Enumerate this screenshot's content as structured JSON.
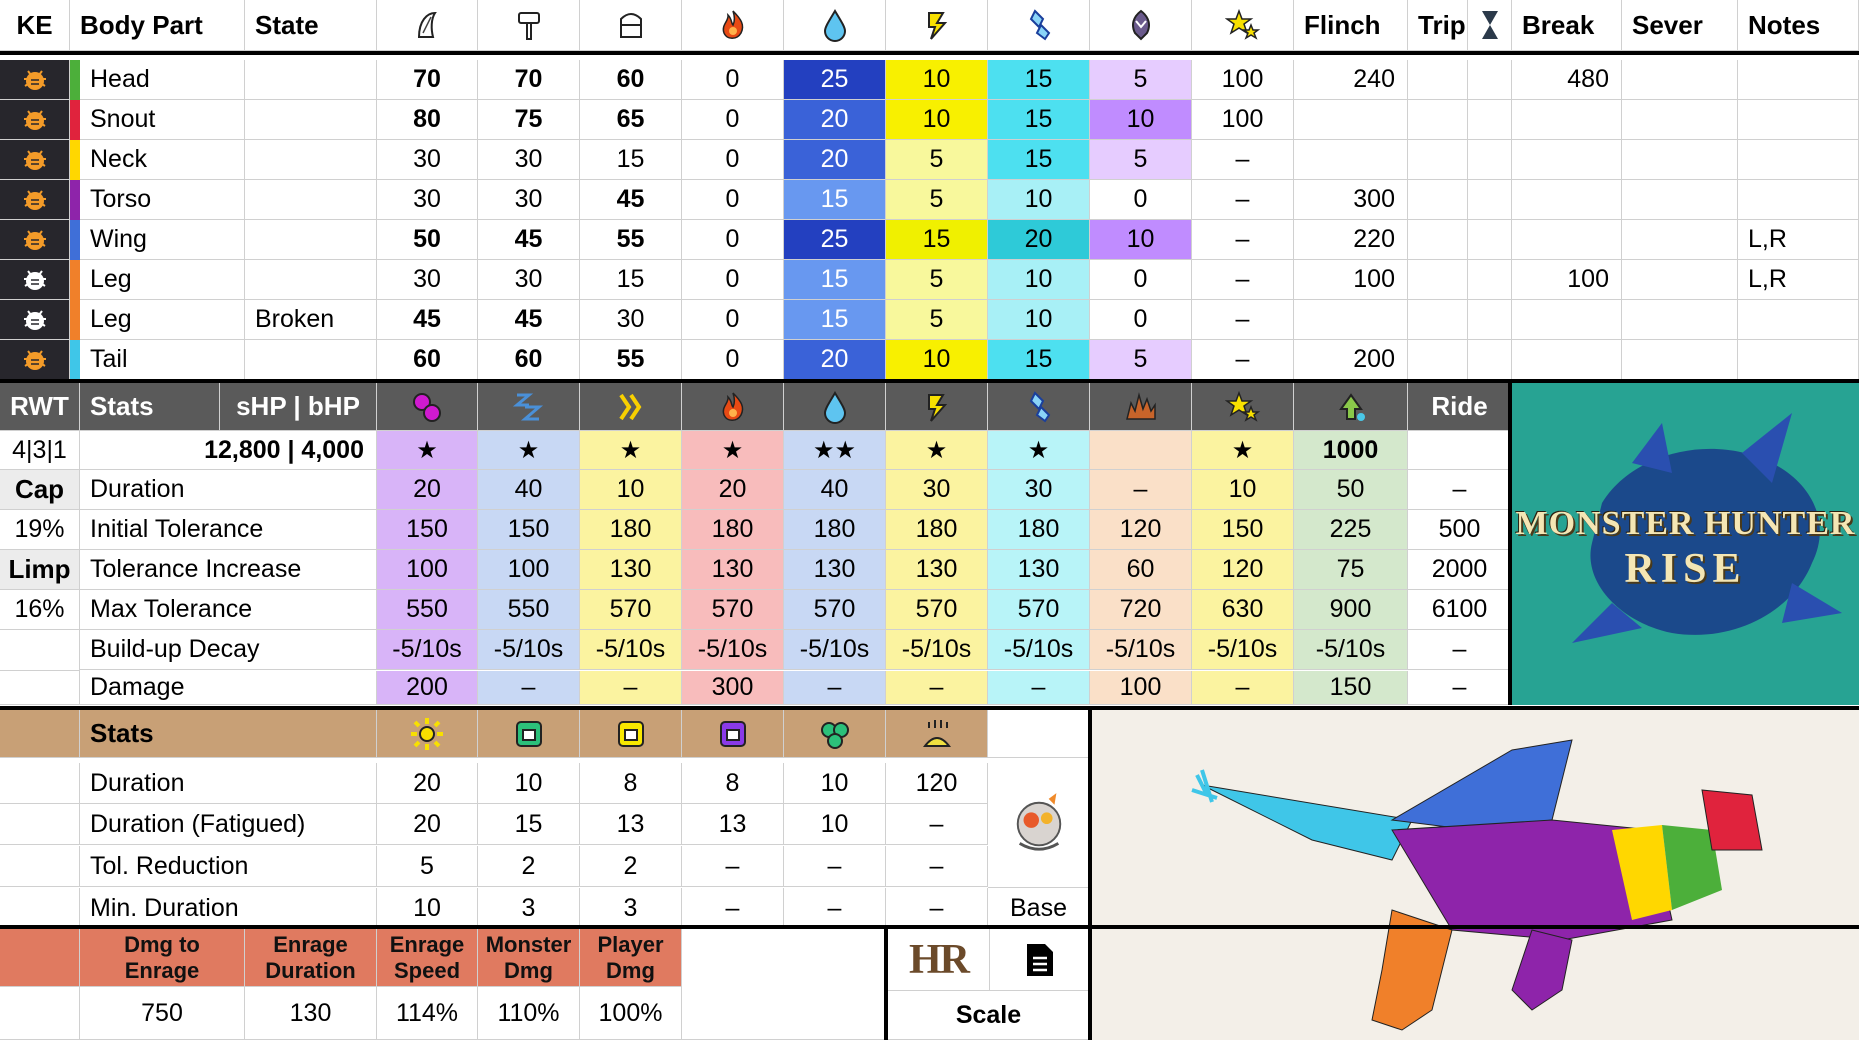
{
  "header": {
    "ke": "KE",
    "body_part": "Body Part",
    "state": "State",
    "flinch": "Flinch",
    "trip": "Trip",
    "break": "Break",
    "sever": "Sever",
    "notes": "Notes",
    "icons": [
      "sever-icon",
      "blunt-icon",
      "shot-icon",
      "fire-icon",
      "water-icon",
      "thunder-icon",
      "ice-icon",
      "dragon-icon",
      "stun-icon"
    ]
  },
  "parts": [
    {
      "ke": "orange",
      "color": "#4caf3a",
      "name": "Head",
      "state": "",
      "sever": "70",
      "blunt": "70",
      "shot": "60",
      "fire": "0",
      "water": "25",
      "thunder": "10",
      "ice": "15",
      "dragon": "5",
      "stun": "100",
      "flinch": "240",
      "trip": "",
      "break": "480",
      "sev": "",
      "notes": "",
      "b": [
        1,
        1,
        1
      ]
    },
    {
      "ke": "orange",
      "color": "#e0233d",
      "name": "Snout",
      "state": "",
      "sever": "80",
      "blunt": "75",
      "shot": "65",
      "fire": "0",
      "water": "20",
      "thunder": "10",
      "ice": "15",
      "dragon": "10",
      "stun": "100",
      "flinch": "",
      "trip": "",
      "break": "",
      "sev": "",
      "notes": "",
      "b": [
        1,
        1,
        1
      ]
    },
    {
      "ke": "orange",
      "color": "#ffd700",
      "name": "Neck",
      "state": "",
      "sever": "30",
      "blunt": "30",
      "shot": "15",
      "fire": "0",
      "water": "20",
      "thunder": "5",
      "ice": "15",
      "dragon": "5",
      "stun": "–",
      "flinch": "",
      "trip": "",
      "break": "",
      "sev": "",
      "notes": "",
      "b": [
        0,
        0,
        0
      ]
    },
    {
      "ke": "orange",
      "color": "#8e24aa",
      "name": "Torso",
      "state": "",
      "sever": "30",
      "blunt": "30",
      "shot": "45",
      "fire": "0",
      "water": "15",
      "thunder": "5",
      "ice": "10",
      "dragon": "0",
      "stun": "–",
      "flinch": "300",
      "trip": "",
      "break": "",
      "sev": "",
      "notes": "",
      "b": [
        0,
        0,
        1
      ]
    },
    {
      "ke": "orange",
      "color": "#3f6fd8",
      "name": "Wing",
      "state": "",
      "sever": "50",
      "blunt": "45",
      "shot": "55",
      "fire": "0",
      "water": "25",
      "thunder": "15",
      "ice": "20",
      "dragon": "10",
      "stun": "–",
      "flinch": "220",
      "trip": "",
      "break": "",
      "sev": "",
      "notes": "L,R",
      "b": [
        1,
        1,
        1
      ]
    },
    {
      "ke": "white",
      "color": "#f0802a",
      "name": "Leg",
      "state": "",
      "sever": "30",
      "blunt": "30",
      "shot": "15",
      "fire": "0",
      "water": "15",
      "thunder": "5",
      "ice": "10",
      "dragon": "0",
      "stun": "–",
      "flinch": "100",
      "trip": "",
      "break": "100",
      "sev": "",
      "notes": "L,R",
      "b": [
        0,
        0,
        0
      ]
    },
    {
      "ke": "white",
      "color": "#f0802a",
      "name": "Leg",
      "state": "Broken",
      "sever": "45",
      "blunt": "45",
      "shot": "30",
      "fire": "0",
      "water": "15",
      "thunder": "5",
      "ice": "10",
      "dragon": "0",
      "stun": "–",
      "flinch": "",
      "trip": "",
      "break": "",
      "sev": "",
      "notes": "",
      "b": [
        1,
        1,
        0
      ]
    },
    {
      "ke": "orange",
      "color": "#3fc6e8",
      "name": "Tail",
      "state": "",
      "sever": "60",
      "blunt": "60",
      "shot": "55",
      "fire": "0",
      "water": "20",
      "thunder": "10",
      "ice": "15",
      "dragon": "5",
      "stun": "–",
      "flinch": "200",
      "trip": "",
      "break": "",
      "sev": "",
      "notes": "",
      "b": [
        1,
        1,
        1
      ]
    }
  ],
  "status": {
    "rwt_label": "RWT",
    "stats_label": "Stats",
    "hp_label": "sHP  |   bHP",
    "ride_label": "Ride",
    "rwt_value": "4|3|1",
    "hp_value": "12,800 | 4,000",
    "cap_label": "Cap",
    "cap_value": "19%",
    "limp_label": "Limp",
    "limp_value": "16%",
    "icons": [
      "poison-icon",
      "sleep-icon",
      "paralysis-icon",
      "fire-blight-icon",
      "water-blight-icon",
      "thunder-blight-icon",
      "ice-blight-icon",
      "blast-icon",
      "stun-icon",
      "exhaust-icon"
    ],
    "stars": [
      "★",
      "★",
      "★",
      "★",
      "★★",
      "★",
      "★",
      "",
      "★",
      "1000",
      ""
    ],
    "rows": [
      {
        "label": "Duration",
        "values": [
          "20",
          "40",
          "10",
          "20",
          "40",
          "30",
          "30",
          "–",
          "10",
          "50",
          "–"
        ]
      },
      {
        "label": "Initial Tolerance",
        "values": [
          "150",
          "150",
          "180",
          "180",
          "180",
          "180",
          "180",
          "120",
          "150",
          "225",
          "500"
        ]
      },
      {
        "label": "Tolerance Increase",
        "values": [
          "100",
          "100",
          "130",
          "130",
          "130",
          "130",
          "130",
          "60",
          "120",
          "75",
          "2000"
        ]
      },
      {
        "label": "Max Tolerance",
        "values": [
          "550",
          "550",
          "570",
          "570",
          "570",
          "570",
          "570",
          "720",
          "630",
          "900",
          "6100"
        ]
      },
      {
        "label": "Build-up Decay",
        "values": [
          "-5/10s",
          "-5/10s",
          "-5/10s",
          "-5/10s",
          "-5/10s",
          "-5/10s",
          "-5/10s",
          "-5/10s",
          "-5/10s",
          "-5/10s",
          "–"
        ]
      },
      {
        "label": "Damage",
        "values": [
          "200",
          "–",
          "–",
          "300",
          "–",
          "–",
          "–",
          "100",
          "–",
          "150",
          "–"
        ]
      }
    ]
  },
  "traps": {
    "stats_label": "Stats",
    "icons": [
      "flash-pod-icon",
      "shock-trap-icon",
      "pitfall-trap-icon",
      "sonic-trap-icon",
      "tranq-icon",
      "dung-pod-icon"
    ],
    "rows": [
      {
        "label": "Duration",
        "values": [
          "20",
          "10",
          "8",
          "8",
          "10",
          "120"
        ]
      },
      {
        "label": "Duration (Fatigued)",
        "values": [
          "20",
          "15",
          "13",
          "13",
          "10",
          "–"
        ]
      },
      {
        "label": "Tol. Reduction",
        "values": [
          "5",
          "2",
          "2",
          "–",
          "–",
          "–"
        ]
      },
      {
        "label": "Min. Duration",
        "values": [
          "10",
          "3",
          "3",
          "–",
          "–",
          "–"
        ]
      }
    ],
    "base_label": "Base"
  },
  "enrage": {
    "headers": [
      "Dmg to\nEnrage",
      "Enrage\nDuration",
      "Enrage\nSpeed",
      "Monster\nDmg",
      "Player\nDmg"
    ],
    "values": [
      "750",
      "130",
      "114%",
      "110%",
      "100%"
    ],
    "hr_label": "HR",
    "scale_label": "Scale"
  },
  "logo": {
    "line1": "MONSTER HUNTER",
    "line2": "RISE"
  },
  "colors": {
    "water": [
      "#2340c0",
      "#3a62d8",
      "#3a62d8",
      "#6898f0",
      "#2340c0",
      "#6898f0",
      "#6898f0",
      "#3a62d8"
    ],
    "thunder": [
      "#f8f000",
      "#f8f000",
      "#f8f89c",
      "#f8f89c",
      "#f0f000",
      "#f8f89c",
      "#f8f89c",
      "#f8f000"
    ],
    "ice": [
      "#4de0f0",
      "#4de0f0",
      "#4de0f0",
      "#a8f0f6",
      "#2ecad8",
      "#a8f0f6",
      "#a8f0f6",
      "#4de0f0"
    ],
    "dragon": [
      "#e6ccff",
      "#c08cff",
      "#e6ccff",
      "#ffffff",
      "#c08cff",
      "#ffffff",
      "#ffffff",
      "#e6ccff"
    ],
    "status_cols": [
      "#d8b4f8",
      "#c8d8f4",
      "#fbf3a0",
      "#f8bcbc",
      "#c8d8f4",
      "#fbf3a0",
      "#b8f4f8",
      "#fae0c8",
      "#fbf3a0",
      "#d4e8cc",
      "#ffffff"
    ]
  }
}
